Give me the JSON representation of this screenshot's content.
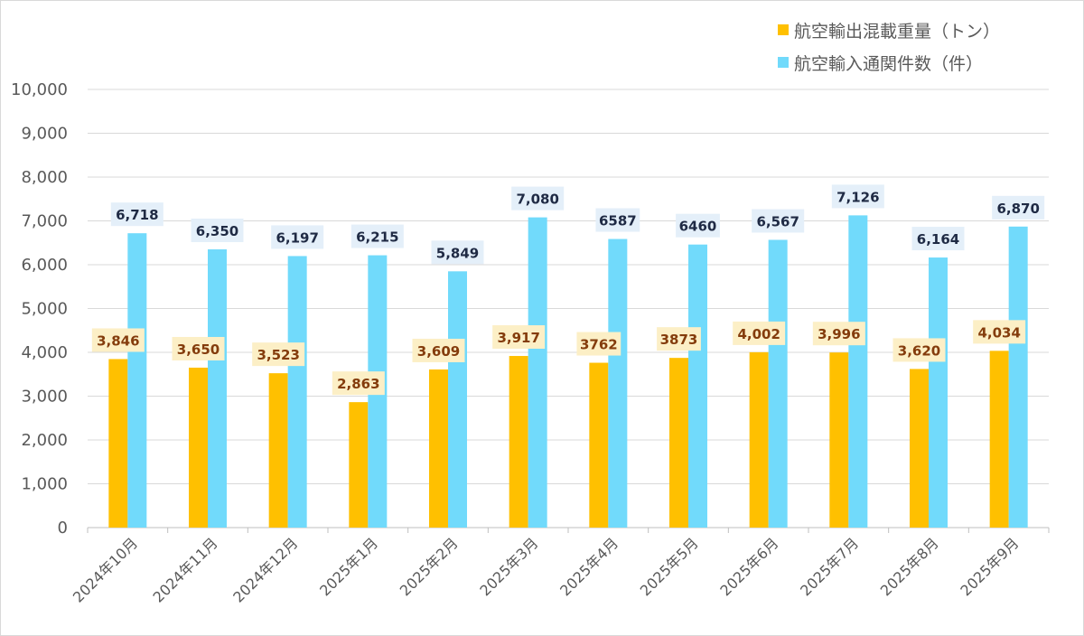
{
  "chart_data": {
    "type": "bar",
    "categories": [
      "2024年10月",
      "2024年11月",
      "2024年12月",
      "2025年1月",
      "2025年2月",
      "2025年3月",
      "2025年4月",
      "2025年5月",
      "2025年6月",
      "2025年7月",
      "2025年8月",
      "2025年9月"
    ],
    "series": [
      {
        "name": "航空輸出混載重量（トン）",
        "color": "#FFC000",
        "values": [
          3846,
          3650,
          3523,
          2863,
          3609,
          3917,
          3762,
          3873,
          4002,
          3996,
          3620,
          4034
        ],
        "labels": [
          "3,846",
          "3,650",
          "3,523",
          "2,863",
          "3,609",
          "3,917",
          "3762",
          "3873",
          "4,002",
          "3,996",
          "3,620",
          "4,034"
        ],
        "label_bg": "#FCEFC6",
        "label_color": "#843C0C"
      },
      {
        "name": "航空輸入通関件数（件）",
        "color": "#71DAFB",
        "values": [
          6718,
          6350,
          6197,
          6215,
          5849,
          7080,
          6587,
          6460,
          6567,
          7126,
          6164,
          6870
        ],
        "labels": [
          "6,718",
          "6,350",
          "6,197",
          "6,215",
          "5,849",
          "7,080",
          "6587",
          "6460",
          "6,567",
          "7,126",
          "6,164",
          "6,870"
        ],
        "label_bg": "#E4EFF9",
        "label_color": "#1F2A44"
      }
    ],
    "y_ticks": [
      "0",
      "1,000",
      "2,000",
      "3,000",
      "4,000",
      "5,000",
      "6,000",
      "7,000",
      "8,000",
      "9,000",
      "10,000"
    ],
    "ylim": [
      0,
      10000
    ],
    "grid": true,
    "legend_position": "top-right",
    "title": "",
    "xlabel": "",
    "ylabel": ""
  }
}
